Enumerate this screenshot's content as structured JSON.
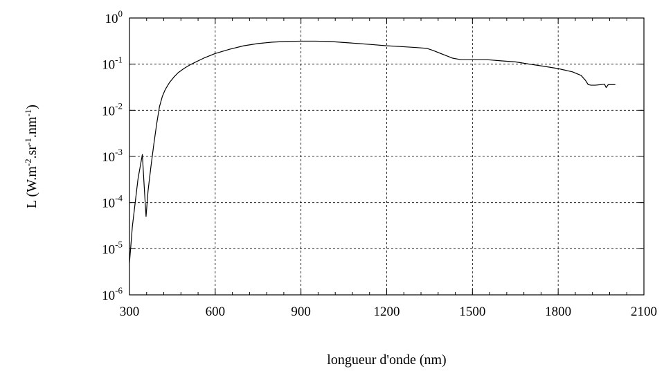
{
  "chart_data": {
    "type": "line",
    "title": "",
    "xlabel": "longueur d'onde (nm)",
    "ylabel": {
      "base": "L (W.m",
      "exp1": "-2",
      "mid1": ".sr",
      "exp2": "-1",
      "mid2": ".nm",
      "exp3": "-1",
      "end": ")"
    },
    "xlim": [
      300,
      2100
    ],
    "ylim": [
      1e-06,
      1
    ],
    "yscale": "log",
    "grid": true,
    "xticks": [
      {
        "value": 300,
        "label": "300"
      },
      {
        "value": 600,
        "label": "600"
      },
      {
        "value": 900,
        "label": "900"
      },
      {
        "value": 1200,
        "label": "1200"
      },
      {
        "value": 1500,
        "label": "1500"
      },
      {
        "value": 1800,
        "label": "1800"
      },
      {
        "value": 2100,
        "label": "2100"
      }
    ],
    "yticks": [
      {
        "value": 1,
        "base": "10",
        "exp": "0"
      },
      {
        "value": 0.1,
        "base": "10",
        "exp": "-1"
      },
      {
        "value": 0.01,
        "base": "10",
        "exp": "-2"
      },
      {
        "value": 0.001,
        "base": "10",
        "exp": "-3"
      },
      {
        "value": 0.0001,
        "base": "10",
        "exp": "-4"
      },
      {
        "value": 1e-05,
        "base": "10",
        "exp": "-5"
      },
      {
        "value": 1e-06,
        "base": "10",
        "exp": "-6"
      }
    ],
    "series": [
      {
        "color": "#000000",
        "x": [
          300,
          305,
          310,
          320,
          330,
          345,
          352,
          358,
          365,
          375,
          385,
          395,
          405,
          415,
          425,
          440,
          455,
          470,
          490,
          510,
          530,
          560,
          600,
          650,
          700,
          750,
          800,
          850,
          900,
          950,
          1000,
          1050,
          1100,
          1150,
          1200,
          1250,
          1300,
          1340,
          1360,
          1400,
          1430,
          1460,
          1500,
          1550,
          1600,
          1650,
          1700,
          1750,
          1800,
          1850,
          1880,
          1895,
          1905,
          1915,
          1930,
          1950,
          1962,
          1968,
          1975,
          1982,
          2000
        ],
        "y": [
          5e-06,
          1.2e-05,
          3e-05,
          0.0001,
          0.00033,
          0.0011,
          0.0002,
          5e-05,
          0.00018,
          0.0006,
          0.0018,
          0.005,
          0.012,
          0.02,
          0.028,
          0.04,
          0.052,
          0.065,
          0.08,
          0.095,
          0.11,
          0.135,
          0.17,
          0.21,
          0.25,
          0.28,
          0.3,
          0.31,
          0.315,
          0.315,
          0.31,
          0.295,
          0.28,
          0.265,
          0.25,
          0.24,
          0.23,
          0.22,
          0.2,
          0.16,
          0.135,
          0.125,
          0.125,
          0.125,
          0.118,
          0.112,
          0.1,
          0.09,
          0.08,
          0.068,
          0.057,
          0.045,
          0.036,
          0.035,
          0.035,
          0.036,
          0.037,
          0.031,
          0.036,
          0.036,
          0.036
        ]
      }
    ]
  }
}
